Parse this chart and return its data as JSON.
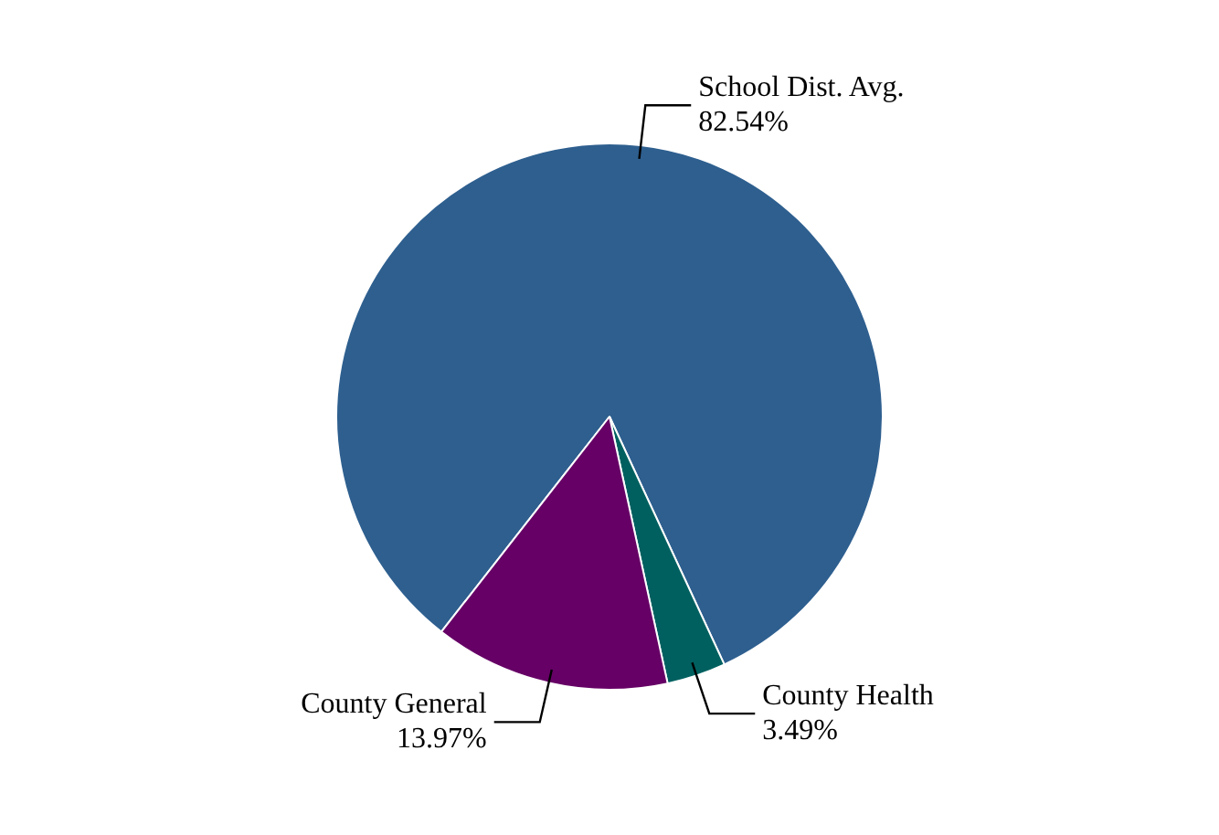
{
  "chart_data": {
    "type": "pie",
    "categories": [
      "School Dist. Avg.",
      "County Health",
      "County General"
    ],
    "values": [
      82.54,
      3.49,
      13.97
    ],
    "colors": [
      "#2e5f8f",
      "#006060",
      "#660066"
    ],
    "value_labels": [
      "82.54%",
      "3.49%",
      "13.97%"
    ]
  }
}
